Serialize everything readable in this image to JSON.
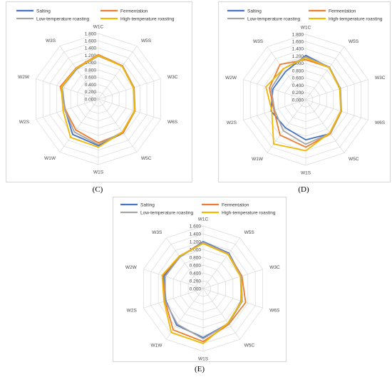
{
  "captions": [
    "(C)",
    "(D)",
    "(E)"
  ],
  "chart_data": [
    {
      "type": "radar",
      "panel_label": "C",
      "axes": [
        "W1C",
        "W5S",
        "W3C",
        "W6S",
        "W5C",
        "W1S",
        "W1W",
        "W2S",
        "W2W",
        "W3S"
      ],
      "rlim": [
        0,
        1.8
      ],
      "ticks": [
        "0.000",
        "0.200",
        "0.400",
        "0.600",
        "0.800",
        "1.000",
        "1.200",
        "1.400",
        "1.600",
        "1.800"
      ],
      "legend_position": "top",
      "series": [
        {
          "name": "Salting",
          "color": "#4472c4",
          "values": [
            1.2,
            1.12,
            1.02,
            1.05,
            1.15,
            1.28,
            1.2,
            0.96,
            1.05,
            1.02
          ]
        },
        {
          "name": "Fermentation",
          "color": "#ed7d31",
          "values": [
            1.22,
            1.13,
            1.03,
            1.06,
            1.15,
            1.2,
            1.05,
            0.95,
            1.1,
            1.05
          ]
        },
        {
          "name": "Low-temperature roasting",
          "color": "#a5a5a5",
          "values": [
            1.18,
            1.12,
            1.02,
            1.04,
            1.12,
            1.25,
            1.12,
            0.97,
            1.05,
            1.03
          ]
        },
        {
          "name": "High-temperature roasting",
          "color": "#f2b800",
          "values": [
            1.2,
            1.11,
            1.01,
            1.05,
            1.12,
            1.32,
            1.3,
            1.02,
            1.07,
            1.04
          ]
        }
      ]
    },
    {
      "type": "radar",
      "panel_label": "D",
      "axes": [
        "W1C",
        "W5S",
        "W3C",
        "W6S",
        "W5C",
        "W1S",
        "W1W",
        "W2S",
        "W2W",
        "W3S"
      ],
      "rlim": [
        0,
        1.8
      ],
      "ticks": [
        "0.000",
        "0.200",
        "0.400",
        "0.600",
        "0.800",
        "1.000",
        "1.200",
        "1.400",
        "1.600",
        "1.800"
      ],
      "legend_position": "top",
      "series": [
        {
          "name": "Salting",
          "color": "#4472c4",
          "values": [
            1.22,
            1.1,
            0.98,
            1.02,
            1.15,
            1.1,
            0.95,
            1.0,
            0.95,
            0.95
          ]
        },
        {
          "name": "Fermentation",
          "color": "#ed7d31",
          "values": [
            1.1,
            1.1,
            1.0,
            1.03,
            1.15,
            1.3,
            1.2,
            0.92,
            1.05,
            1.2
          ]
        },
        {
          "name": "Low-temperature roasting",
          "color": "#a5a5a5",
          "values": [
            1.18,
            1.11,
            1.0,
            1.02,
            1.14,
            1.22,
            1.05,
            0.9,
            1.0,
            1.05
          ]
        },
        {
          "name": "High-temperature roasting",
          "color": "#f2b800",
          "values": [
            1.15,
            1.09,
            0.98,
            1.01,
            1.12,
            1.4,
            1.5,
            0.98,
            1.15,
            1.05
          ]
        }
      ]
    },
    {
      "type": "radar",
      "panel_label": "E",
      "axes": [
        "W1C",
        "W5S",
        "W3C",
        "W6S",
        "W5C",
        "W1S",
        "W1W",
        "W2S",
        "W2W",
        "W3S"
      ],
      "rlim": [
        0,
        1.6
      ],
      "ticks": [
        "0.000",
        "0.200",
        "0.400",
        "0.600",
        "0.800",
        "1.000",
        "1.200",
        "1.400",
        "1.600"
      ],
      "legend_position": "top",
      "series": [
        {
          "name": "Salting",
          "color": "#4472c4",
          "values": [
            1.2,
            1.12,
            1.02,
            1.02,
            1.1,
            1.25,
            1.15,
            1.0,
            1.05,
            1.0
          ]
        },
        {
          "name": "Fermentation",
          "color": "#ed7d31",
          "values": [
            1.18,
            1.1,
            1.04,
            1.14,
            1.12,
            1.35,
            1.3,
            1.02,
            1.08,
            1.02
          ]
        },
        {
          "name": "Low-temperature roasting",
          "color": "#a5a5a5",
          "values": [
            1.18,
            1.1,
            1.02,
            1.05,
            1.1,
            1.28,
            1.12,
            1.02,
            1.02,
            1.0
          ]
        },
        {
          "name": "High-temperature roasting",
          "color": "#f2b800",
          "values": [
            1.15,
            1.08,
            1.0,
            1.03,
            1.08,
            1.4,
            1.38,
            1.05,
            1.1,
            1.03
          ]
        }
      ]
    }
  ]
}
